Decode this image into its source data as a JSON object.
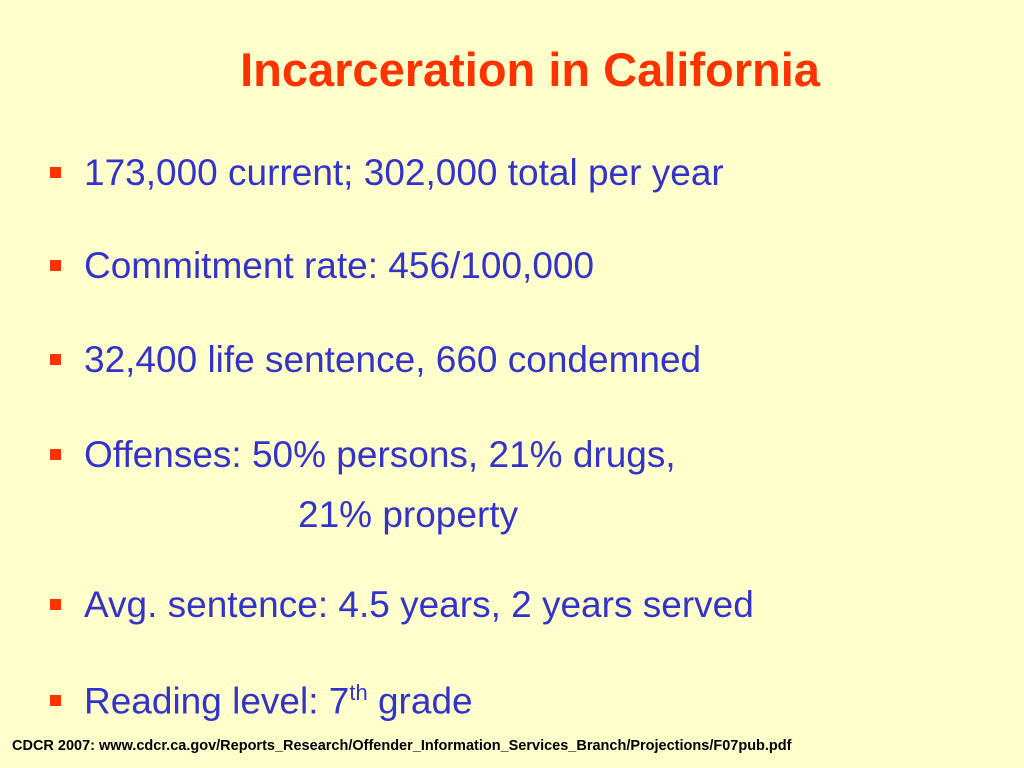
{
  "header": {
    "title": "Incarceration in California"
  },
  "bullets": [
    {
      "text": "173,000 current; 302,000 total per year"
    },
    {
      "text": "Commitment rate: 456/100,000"
    },
    {
      "text": "32,400 life sentence, 660 condemned"
    },
    {
      "text": "Offenses: 50% persons, 21% drugs,",
      "continuation": "21% property"
    },
    {
      "text": "Avg. sentence: 4.5 years, 2 years served"
    },
    {
      "text": "Reading level: 7",
      "superscript": "th",
      "text_after": " grade"
    }
  ],
  "footer": {
    "source": "CDCR 2007:  www.cdcr.ca.gov/Reports_Research/Offender_Information_Services_Branch/Projections/F07pub.pdf"
  }
}
